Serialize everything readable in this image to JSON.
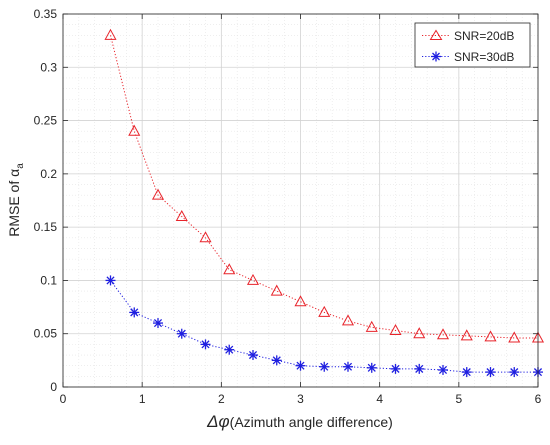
{
  "chart_data": {
    "type": "line",
    "title": "",
    "xlabel_symbol": "Δφ",
    "xlabel_text": "(Azimuth angle difference)",
    "ylabel_prefix": "RMSE of α",
    "ylabel_subscript": "a",
    "xlim": [
      0,
      6
    ],
    "ylim": [
      0,
      0.35
    ],
    "xticks": [
      0,
      1,
      2,
      3,
      4,
      5,
      6
    ],
    "xtick_labels": [
      "0",
      "1",
      "2",
      "3",
      "4",
      "5",
      "6"
    ],
    "yticks": [
      0,
      0.05,
      0.1,
      0.15,
      0.2,
      0.25,
      0.3,
      0.35
    ],
    "ytick_labels": [
      "0",
      "0.05",
      "0.1",
      "0.15",
      "0.2",
      "0.25",
      "0.3",
      "0.35"
    ],
    "grid": true,
    "minor_grid": true,
    "legend_position": "top-right",
    "x": [
      0.6,
      0.9,
      1.2,
      1.5,
      1.8,
      2.1,
      2.4,
      2.7,
      3.0,
      3.3,
      3.6,
      3.9,
      4.2,
      4.5,
      4.8,
      5.1,
      5.4,
      5.7,
      6.0
    ],
    "series": [
      {
        "name": "SNR=20dB",
        "color": "#e8232a",
        "marker": "triangle",
        "line_style": "dotted",
        "values": [
          0.33,
          0.24,
          0.18,
          0.16,
          0.14,
          0.11,
          0.1,
          0.09,
          0.08,
          0.07,
          0.062,
          0.056,
          0.053,
          0.05,
          0.049,
          0.048,
          0.047,
          0.046,
          0.046
        ]
      },
      {
        "name": "SNR=30dB",
        "color": "#1f1fe0",
        "marker": "asterisk",
        "line_style": "dotted",
        "values": [
          0.1,
          0.07,
          0.06,
          0.05,
          0.04,
          0.035,
          0.03,
          0.025,
          0.02,
          0.019,
          0.019,
          0.018,
          0.017,
          0.017,
          0.016,
          0.014,
          0.014,
          0.014,
          0.014
        ]
      }
    ]
  }
}
